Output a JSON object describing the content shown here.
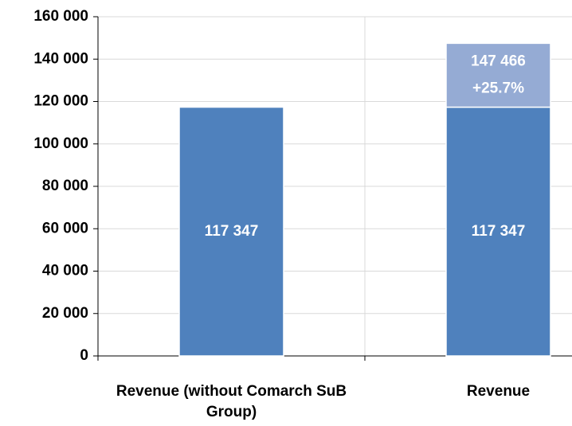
{
  "chart_data": {
    "type": "stacked_bar",
    "categories": [
      "Revenue (without Comarch SuB Group)",
      "Revenue"
    ],
    "series": [
      {
        "color": "#4f81bd",
        "values": [
          117347,
          117347
        ],
        "value_labels": [
          "117 347",
          "117 347"
        ]
      },
      {
        "color": "#95abd4",
        "values": [
          null,
          30119
        ]
      }
    ],
    "annotations": [
      "147 466",
      "+25.7%"
    ],
    "ylim": [
      0,
      160000
    ],
    "yticks": [
      0,
      {
        "value": 20000,
        "label": "20 000"
      },
      {
        "value": 40000,
        "label": "40 000"
      },
      {
        "value": 60000,
        "label": "60 000"
      },
      {
        "value": 80000,
        "label": "80 000"
      },
      {
        "value": 100000,
        "label": "100 000"
      },
      {
        "value": 120000,
        "label": "120 000"
      },
      {
        "value": 140000,
        "label": "140 000"
      },
      {
        "value": 160000,
        "label": "160 000"
      }
    ],
    "grid": true
  }
}
